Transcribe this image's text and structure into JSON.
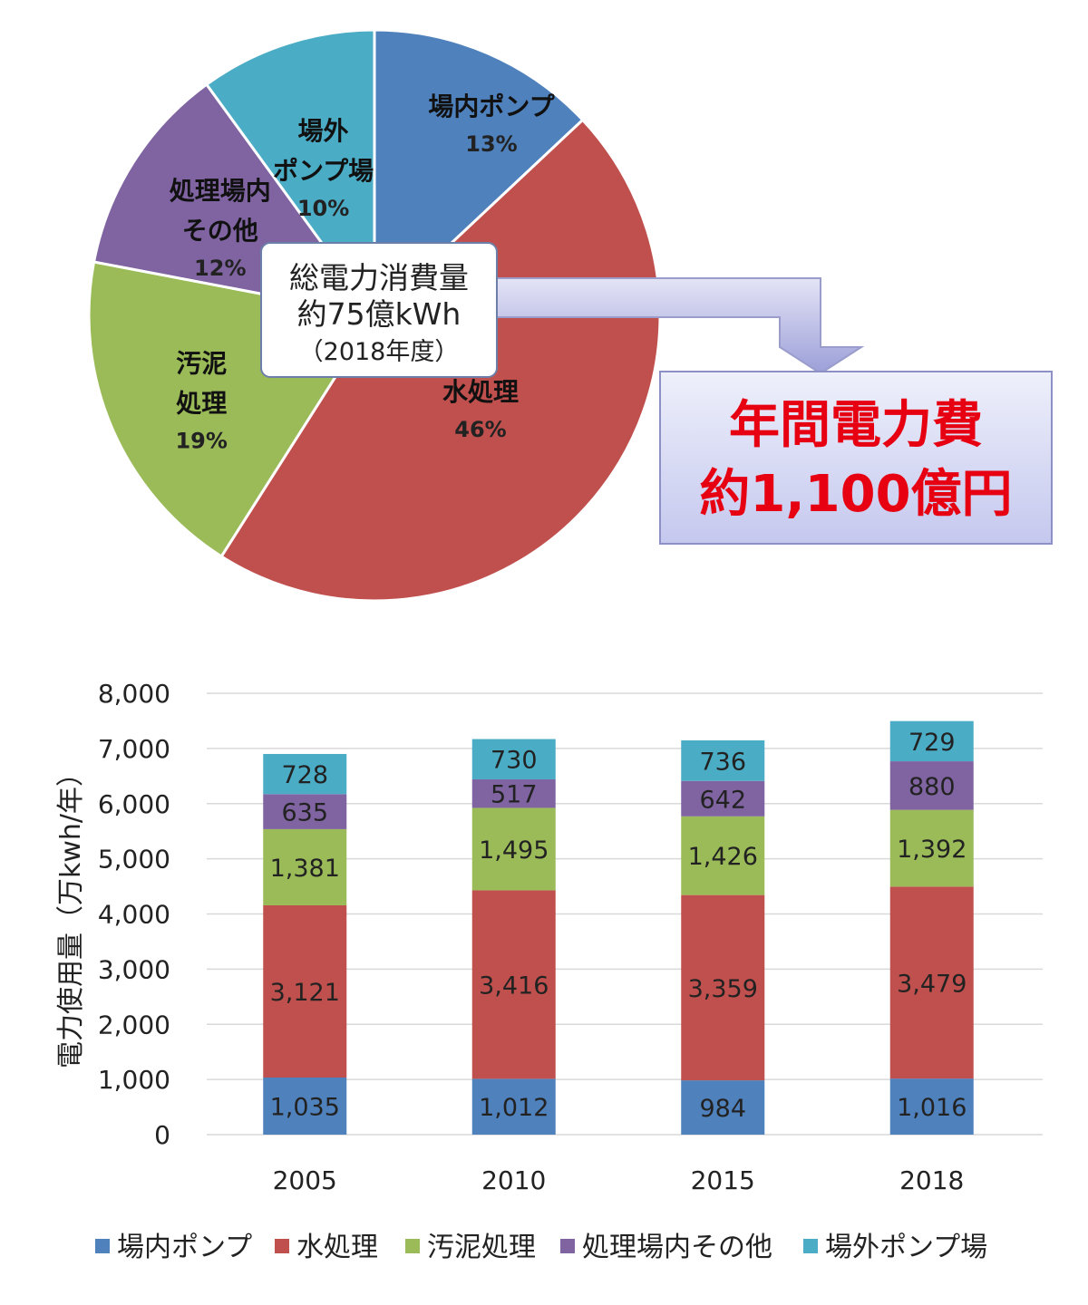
{
  "chart_data": [
    {
      "type": "pie",
      "slices": [
        {
          "name": "場内ポンプ",
          "value": 13,
          "pct": "13%",
          "color": "#4f81bd"
        },
        {
          "name": "水処理",
          "value": 46,
          "pct": "46%",
          "color": "#c0504d"
        },
        {
          "name": "汚泥処理",
          "value": 19,
          "pct": "19%",
          "color": "#9bbb59"
        },
        {
          "name": "処理場内その他",
          "value": 12,
          "pct": "12%",
          "color": "#8064a2"
        },
        {
          "name": "場外ポンプ場",
          "value": 10,
          "pct": "10%",
          "color": "#4bacc6"
        }
      ],
      "slice_labels": [
        [
          "場内ポンプ"
        ],
        [
          "水処理"
        ],
        [
          "汚泥",
          "処理"
        ],
        [
          "処理場内",
          "その他"
        ],
        [
          "場外",
          "ポンプ場"
        ]
      ],
      "callout": {
        "lines": [
          "総電力消費量",
          "約75億kWh",
          "（2018年度）"
        ]
      },
      "cost_box": {
        "lines": [
          "年間電力費",
          "約1,100億円"
        ],
        "color": "#e60012"
      }
    },
    {
      "type": "bar",
      "stacked": true,
      "categories": [
        "2005",
        "2010",
        "2015",
        "2018"
      ],
      "ylabel": "電力使用量（万kwh/年）",
      "ylim": [
        0,
        8000
      ],
      "yticks": [
        "0",
        "1,000",
        "2,000",
        "3,000",
        "4,000",
        "5,000",
        "6,000",
        "7,000",
        "8,000"
      ],
      "grid": true,
      "legend_position": "bottom",
      "series": [
        {
          "name": "場内ポンプ",
          "color": "#4f81bd",
          "values": [
            1035,
            1012,
            984,
            1016
          ],
          "labels": [
            "1,035",
            "1,012",
            "984",
            "1,016"
          ]
        },
        {
          "name": "水処理",
          "color": "#c0504d",
          "values": [
            3121,
            3416,
            3359,
            3479
          ],
          "labels": [
            "3,121",
            "3,416",
            "3,359",
            "3,479"
          ]
        },
        {
          "name": "汚泥処理",
          "color": "#9bbb59",
          "values": [
            1381,
            1495,
            1426,
            1392
          ],
          "labels": [
            "1,381",
            "1,495",
            "1,426",
            "1,392"
          ]
        },
        {
          "name": "処理場内その他",
          "color": "#8064a2",
          "values": [
            635,
            517,
            642,
            880
          ],
          "labels": [
            "635",
            "517",
            "642",
            "880"
          ]
        },
        {
          "name": "場外ポンプ場",
          "color": "#4bacc6",
          "values": [
            728,
            730,
            736,
            729
          ],
          "labels": [
            "728",
            "730",
            "736",
            "729"
          ]
        }
      ]
    }
  ]
}
